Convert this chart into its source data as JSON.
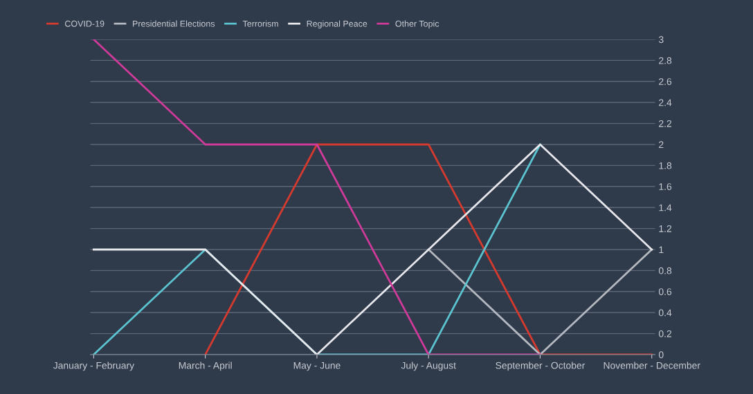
{
  "chart_data": {
    "type": "line",
    "categories": [
      "January - February",
      "March - April",
      "May - June",
      "July - August",
      "September - October",
      "November - December"
    ],
    "series": [
      {
        "name": "COVID-19",
        "color": "#d63a2f",
        "values": [
          null,
          0,
          2,
          2,
          0,
          0
        ]
      },
      {
        "name": "Presidential Elections",
        "color": "#b4b8c0",
        "values": [
          null,
          null,
          null,
          1,
          0,
          1
        ]
      },
      {
        "name": "Terrorism",
        "color": "#5bc4d0",
        "values": [
          0,
          1,
          0,
          0,
          2,
          null
        ]
      },
      {
        "name": "Regional Peace",
        "color": "#e8e8ec",
        "values": [
          1,
          1,
          0,
          1,
          2,
          1
        ]
      },
      {
        "name": "Other Topic",
        "color": "#d03a9a",
        "values": [
          3,
          2,
          2,
          0,
          0,
          null
        ]
      }
    ],
    "ylim": [
      0,
      3
    ],
    "yticks": [
      0,
      0.2,
      0.4,
      0.6,
      0.8,
      1,
      1.2,
      1.4,
      1.6,
      1.8,
      2,
      2.2,
      2.4,
      2.6,
      2.8,
      3
    ],
    "grid": "y",
    "legend": "top left",
    "marker": "none",
    "line_style": "solid"
  }
}
